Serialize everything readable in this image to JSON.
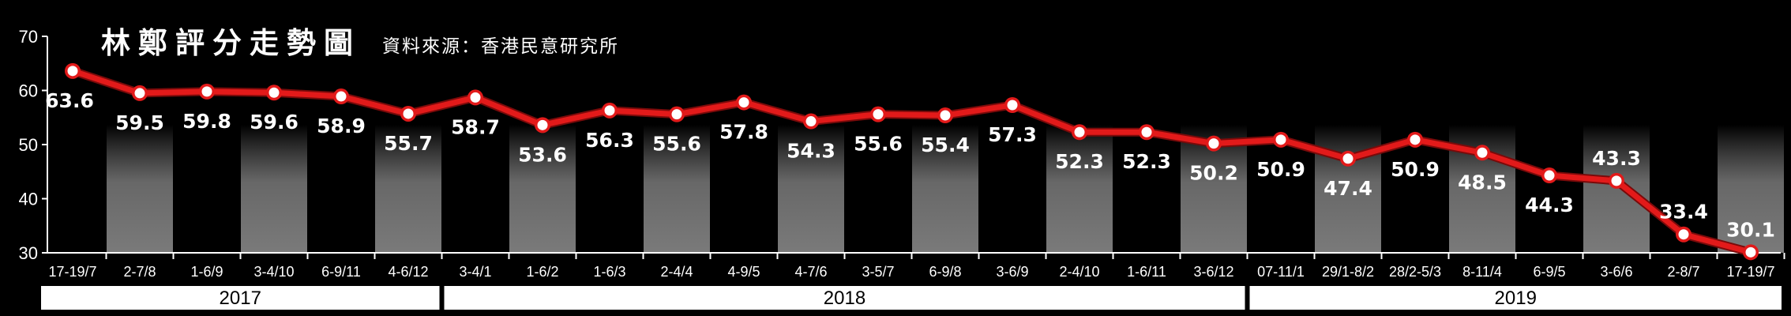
{
  "title": "林鄭評分走勢圖",
  "source": "資料來源：香港民意研究所",
  "colors": {
    "background": "#000000",
    "line": "#e21a1a",
    "marker_fill": "#ffffff",
    "axis": "#ffffff",
    "band_light": "#7a7a7a",
    "year_bar": "#ffffff"
  },
  "chart_data": {
    "type": "line",
    "title": "林鄭評分走勢圖",
    "xlabel": "",
    "ylabel": "",
    "ylim": [
      30,
      70
    ],
    "yticks": [
      30,
      40,
      50,
      60,
      70
    ],
    "grid": false,
    "categories": [
      "17-19/7",
      "2-7/8",
      "1-6/9",
      "3-4/10",
      "6-9/11",
      "4-6/12",
      "3-4/1",
      "1-6/2",
      "1-6/3",
      "2-4/4",
      "4-9/5",
      "4-7/6",
      "3-5/7",
      "6-9/8",
      "3-6/9",
      "2-4/10",
      "1-6/11",
      "3-6/12",
      "07-11/1",
      "29/1-8/2",
      "28/2-5/3",
      "8-11/4",
      "6-9/5",
      "3-6/6",
      "2-8/7",
      "17-19/7"
    ],
    "series": [
      {
        "values": [
          63.6,
          59.5,
          59.8,
          59.6,
          58.9,
          55.7,
          58.7,
          53.6,
          56.3,
          55.6,
          57.8,
          54.3,
          55.6,
          55.4,
          57.3,
          52.3,
          52.3,
          50.2,
          50.9,
          47.4,
          50.9,
          48.5,
          44.3,
          43.3,
          33.4,
          30.1
        ],
        "labels": [
          "63.6",
          "59.5",
          "59.8",
          "59.6",
          "58.9",
          "55.7",
          "58.7",
          "53.6",
          "56.3",
          "55.6",
          "57.8",
          "54.3",
          "55.6",
          "55.4",
          "57.3",
          "52.3",
          "52.3",
          "50.2",
          "50.9",
          "47.4",
          "50.9",
          "48.5",
          "44.3",
          "43.3",
          "33.4",
          "30.1"
        ]
      }
    ],
    "years": [
      {
        "label": "2017",
        "first": 0,
        "last": 5
      },
      {
        "label": "2018",
        "first": 6,
        "last": 17
      },
      {
        "label": "2019",
        "first": 18,
        "last": 25
      }
    ]
  }
}
